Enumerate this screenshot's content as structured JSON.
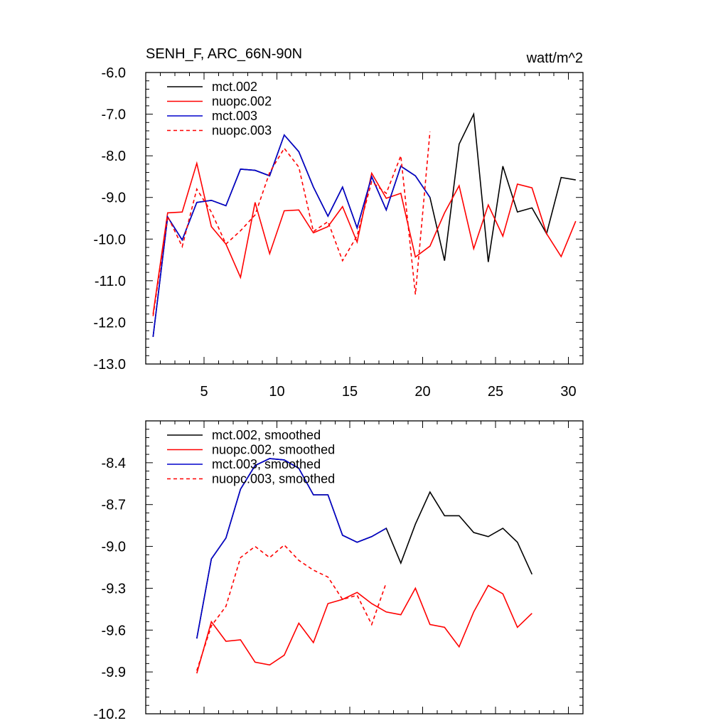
{
  "chart_data": [
    {
      "type": "line",
      "title": "SENH_F, ARC_66N-90N",
      "units": "watt/m^2",
      "xlim": [
        1,
        31
      ],
      "ylim": [
        -13.0,
        -6.0
      ],
      "xticks": [
        5,
        10,
        15,
        20,
        25,
        30
      ],
      "xtick_labels": [
        "5",
        "10",
        "15",
        "20",
        "25",
        "30"
      ],
      "yticks": [
        -13,
        -12,
        -11,
        -10,
        -9,
        -8,
        -7,
        -6
      ],
      "ytick_labels": [
        "-13.0",
        "-12.0",
        "-11.0",
        "-10.0",
        "-9.0",
        "-8.0",
        "-7.0",
        "-6.0"
      ],
      "series": [
        {
          "name": "mct.002",
          "color": "#000000",
          "dashed": false,
          "x": [
            1.5,
            2.5,
            3.5,
            4.5,
            5.5,
            6.5,
            7.5,
            8.5,
            9.5,
            10.5,
            11.5,
            12.5,
            13.5,
            14.5,
            15.5,
            16.5,
            17.5,
            18.5,
            19.5,
            20.5,
            21.5,
            22.5,
            23.5,
            24.5,
            25.5,
            26.5,
            27.5,
            28.5,
            29.5,
            30.5
          ],
          "values": [
            -12.35,
            -9.47,
            -10.02,
            -9.12,
            -9.07,
            -9.2,
            -8.32,
            -8.35,
            -8.48,
            -7.5,
            -7.9,
            -8.75,
            -9.45,
            -8.75,
            -9.73,
            -8.5,
            -9.3,
            -8.25,
            -8.48,
            -9.0,
            -10.52,
            -7.72,
            -7.0,
            -10.55,
            -8.25,
            -9.35,
            -9.25,
            -9.87,
            -8.52,
            -8.58
          ]
        },
        {
          "name": "nuopc.002",
          "color": "#ff0000",
          "dashed": false,
          "x": [
            1.5,
            2.5,
            3.5,
            4.5,
            5.5,
            6.5,
            7.5,
            8.5,
            9.5,
            10.5,
            11.5,
            12.5,
            13.5,
            14.5,
            15.5,
            16.5,
            17.5,
            18.5,
            19.5,
            20.5,
            21.5,
            22.5,
            23.5,
            24.5,
            25.5,
            26.5,
            27.5,
            28.5,
            29.5,
            30.5
          ],
          "values": [
            -11.8,
            -9.37,
            -9.35,
            -8.18,
            -9.7,
            -10.12,
            -10.92,
            -9.12,
            -10.35,
            -9.32,
            -9.3,
            -9.85,
            -9.7,
            -9.22,
            -10.07,
            -8.42,
            -9.02,
            -8.9,
            -10.43,
            -10.17,
            -9.37,
            -8.72,
            -10.23,
            -9.18,
            -9.93,
            -8.68,
            -8.77,
            -9.87,
            -10.42,
            -9.57
          ]
        },
        {
          "name": "mct.003",
          "color": "#0000cc",
          "dashed": false,
          "x": [
            1.5,
            2.5,
            3.5,
            4.5,
            5.5,
            6.5,
            7.5,
            8.5,
            9.5,
            10.5,
            11.5,
            12.5,
            13.5,
            14.5,
            15.5,
            16.5,
            17.5,
            18.5,
            19.5,
            20.5
          ],
          "values": [
            -12.35,
            -9.47,
            -10.02,
            -9.12,
            -9.07,
            -9.2,
            -8.32,
            -8.35,
            -8.48,
            -7.5,
            -7.9,
            -8.75,
            -9.45,
            -8.75,
            -9.73,
            -8.5,
            -9.3,
            -8.25,
            -8.48,
            -9.0
          ]
        },
        {
          "name": "nuopc.003",
          "color": "#ff0000",
          "dashed": true,
          "x": [
            1.5,
            2.5,
            3.5,
            4.5,
            5.5,
            6.5,
            7.5,
            8.5,
            9.5,
            10.5,
            11.5,
            12.5,
            13.5,
            14.5,
            15.5,
            16.5,
            17.5,
            18.5,
            19.5,
            20.5
          ],
          "values": [
            -11.85,
            -9.45,
            -10.18,
            -8.8,
            -9.35,
            -10.12,
            -9.8,
            -9.42,
            -8.4,
            -7.82,
            -8.27,
            -9.82,
            -9.58,
            -10.52,
            -9.92,
            -8.62,
            -8.9,
            -8.0,
            -11.33,
            -7.42
          ]
        }
      ]
    },
    {
      "type": "line",
      "title": "",
      "xlim": [
        1,
        31
      ],
      "ylim": [
        -10.2,
        -8.1
      ],
      "xticks": [
        5,
        10,
        15,
        20,
        25,
        30
      ],
      "yticks": [
        -10.2,
        -9.9,
        -9.6,
        -9.3,
        -9.0,
        -8.7,
        -8.4
      ],
      "ytick_labels": [
        "-10.2",
        "-9.9",
        "-9.6",
        "-9.3",
        "-9.0",
        "-8.7",
        "-8.4"
      ],
      "series": [
        {
          "name": "mct.002, smoothed",
          "color": "#000000",
          "dashed": false,
          "x": [
            4.5,
            5.5,
            6.5,
            7.5,
            8.5,
            9.5,
            10.5,
            11.5,
            12.5,
            13.5,
            14.5,
            15.5,
            16.5,
            17.5,
            18.5,
            19.5,
            20.5,
            21.5,
            22.5,
            23.5,
            24.5,
            25.5,
            26.5,
            27.5
          ],
          "values": [
            -9.66,
            -9.09,
            -8.94,
            -8.59,
            -8.42,
            -8.37,
            -8.38,
            -8.44,
            -8.63,
            -8.63,
            -8.92,
            -8.97,
            -8.93,
            -8.87,
            -9.12,
            -8.84,
            -8.61,
            -8.78,
            -8.78,
            -8.9,
            -8.93,
            -8.87,
            -8.97,
            -9.2
          ]
        },
        {
          "name": "nuopc.002, smoothed",
          "color": "#ff0000",
          "dashed": false,
          "x": [
            4.5,
            5.5,
            6.5,
            7.5,
            8.5,
            9.5,
            10.5,
            11.5,
            12.5,
            13.5,
            14.5,
            15.5,
            16.5,
            17.5,
            18.5,
            19.5,
            20.5,
            21.5,
            22.5,
            23.5,
            24.5,
            25.5,
            26.5,
            27.5
          ],
          "values": [
            -9.91,
            -9.54,
            -9.68,
            -9.67,
            -9.83,
            -9.85,
            -9.78,
            -9.55,
            -9.69,
            -9.41,
            -9.38,
            -9.33,
            -9.41,
            -9.47,
            -9.49,
            -9.3,
            -9.56,
            -9.58,
            -9.72,
            -9.47,
            -9.28,
            -9.34,
            -9.58,
            -9.48
          ]
        },
        {
          "name": "mct.003, smoothed",
          "color": "#0000cc",
          "dashed": false,
          "x": [
            4.5,
            5.5,
            6.5,
            7.5,
            8.5,
            9.5,
            10.5,
            11.5,
            12.5,
            13.5,
            14.5,
            15.5,
            16.5,
            17.5
          ],
          "values": [
            -9.66,
            -9.09,
            -8.94,
            -8.59,
            -8.42,
            -8.37,
            -8.38,
            -8.44,
            -8.63,
            -8.63,
            -8.92,
            -8.97,
            -8.93,
            -8.87
          ]
        },
        {
          "name": "nuopc.003, smoothed",
          "color": "#ff0000",
          "dashed": true,
          "x": [
            4.5,
            5.5,
            6.5,
            7.5,
            8.5,
            9.5,
            10.5,
            11.5,
            12.5,
            13.5,
            14.5,
            15.5,
            16.5,
            17.5
          ],
          "values": [
            -9.89,
            -9.57,
            -9.43,
            -9.08,
            -9.0,
            -9.08,
            -8.99,
            -9.1,
            -9.17,
            -9.22,
            -9.38,
            -9.35,
            -9.56,
            -9.26
          ]
        }
      ]
    }
  ]
}
